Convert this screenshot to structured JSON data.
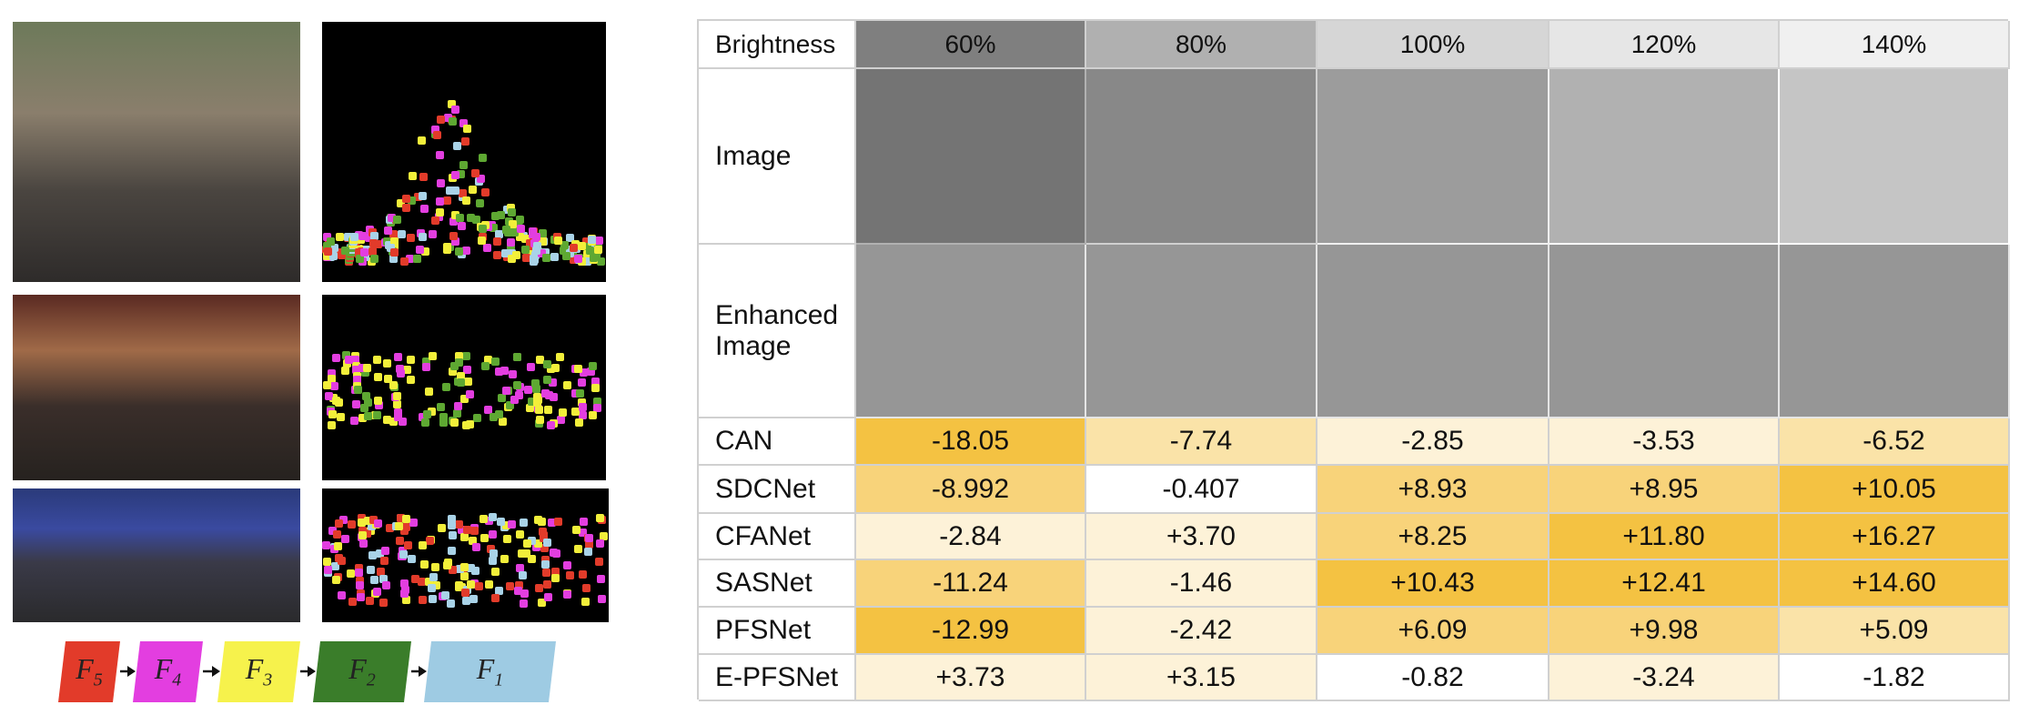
{
  "legend": [
    {
      "base": "F",
      "sub": "5"
    },
    {
      "base": "F",
      "sub": "4"
    },
    {
      "base": "F",
      "sub": "3"
    },
    {
      "base": "F",
      "sub": "2"
    },
    {
      "base": "F",
      "sub": "1"
    }
  ],
  "table": {
    "header": [
      "Brightness",
      "60%",
      "80%",
      "100%",
      "120%",
      "140%"
    ],
    "image_rows": [
      "Image",
      "Enhanced Image"
    ],
    "rows": [
      [
        "CAN",
        "-18.05",
        "-7.74",
        "-2.85",
        "-3.53",
        "-6.52"
      ],
      [
        "SDCNet",
        "-8.992",
        "-0.407",
        "+8.93",
        "+8.95",
        "+10.05"
      ],
      [
        "CFANet",
        "-2.84",
        "+3.70",
        "+8.25",
        "+11.80",
        "+16.27"
      ],
      [
        "SASNet",
        "-11.24",
        "-1.46",
        "+10.43",
        "+12.41",
        "+14.60"
      ],
      [
        "PFSNet",
        "-12.99",
        "-2.42",
        "+6.09",
        "+9.98",
        "+5.09"
      ],
      [
        "E-PFSNet",
        "+3.73",
        "+3.15",
        "-0.82",
        "-3.24",
        "-1.82"
      ]
    ]
  }
}
